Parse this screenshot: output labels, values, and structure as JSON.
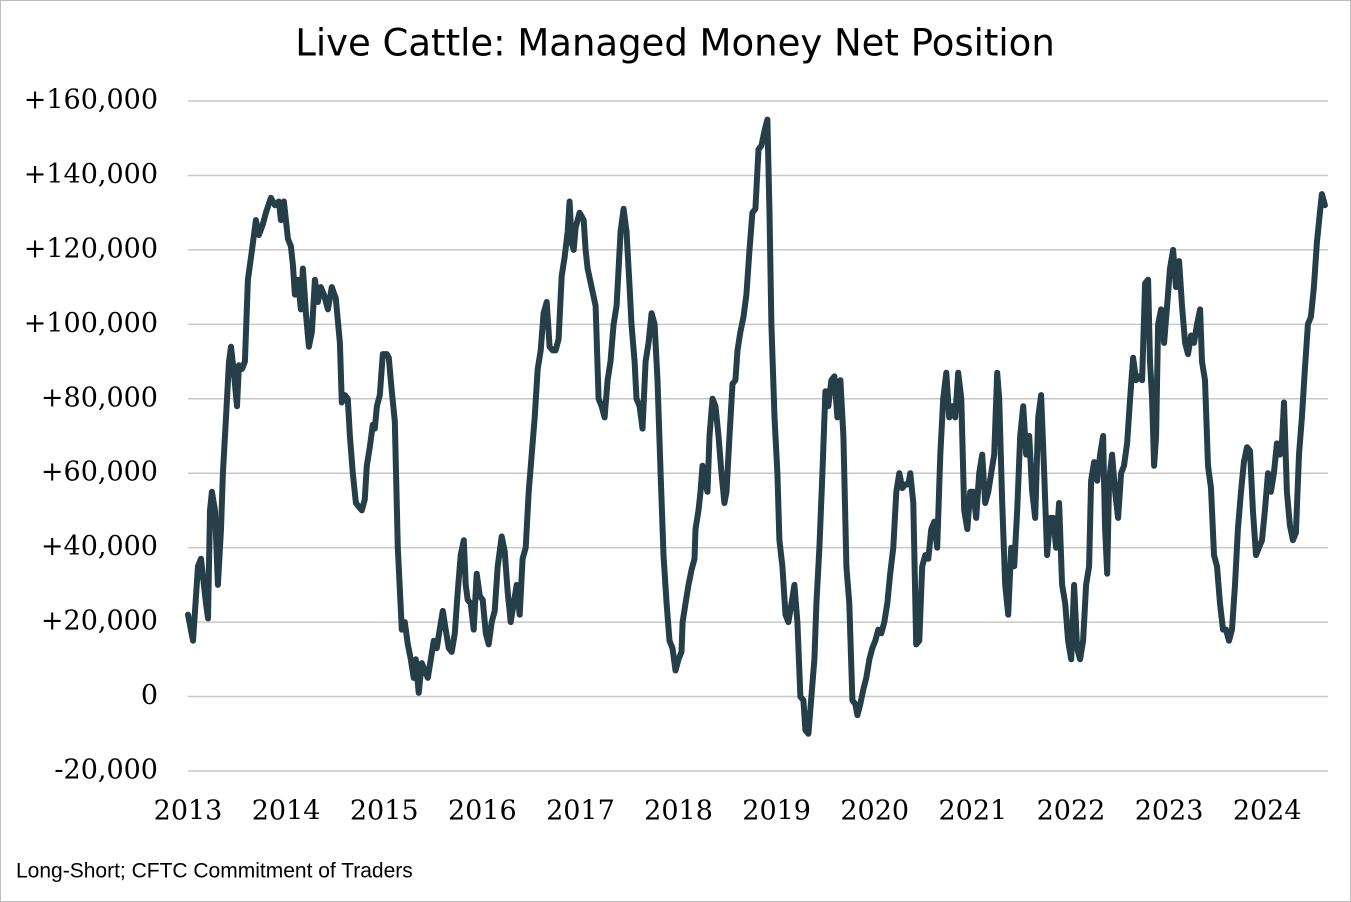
{
  "chart_data": {
    "type": "line",
    "title": "Live Cattle: Managed Money Net Position",
    "note": "Long-Short; CFTC Commitment of Traders",
    "color": "#263e48",
    "grid": true,
    "xlim": [
      2013,
      2024.62
    ],
    "xticks": [
      2013,
      2014,
      2015,
      2016,
      2017,
      2018,
      2019,
      2020,
      2021,
      2022,
      2023,
      2024
    ],
    "ylim": [
      -20000,
      160000
    ],
    "yticks": [
      {
        "value": -20000,
        "label": "-20,000"
      },
      0,
      {
        "value": 20000,
        "label": "+20,000"
      },
      {
        "value": 40000,
        "label": "+40,000"
      },
      {
        "value": 60000,
        "label": "+60,000"
      },
      {
        "value": 80000,
        "label": "+80,000"
      },
      {
        "value": 100000,
        "label": "+100,000"
      },
      {
        "value": 120000,
        "label": "+120,000"
      },
      {
        "value": 140000,
        "label": "+140,000"
      },
      {
        "value": 160000,
        "label": "+160,000"
      }
    ],
    "x": [
      2013.0,
      2013.051,
      2013.102,
      2013.132,
      2013.183,
      2013.204,
      2013.224,
      2013.244,
      2013.275,
      2013.305,
      2013.336,
      2013.356,
      2013.387,
      2013.418,
      2013.438,
      2013.468,
      2013.499,
      2013.519,
      2013.55,
      2013.58,
      2013.611,
      2013.652,
      2013.692,
      2013.723,
      2013.764,
      2013.794,
      2013.845,
      2013.886,
      2013.927,
      2013.947,
      2013.978,
      2014.018,
      2014.049,
      2014.069,
      2014.09,
      2014.12,
      2014.151,
      2014.171,
      2014.202,
      2014.232,
      2014.263,
      2014.293,
      2014.324,
      2014.354,
      2014.385,
      2014.426,
      2014.466,
      2014.507,
      2014.548,
      2014.568,
      2014.599,
      2014.629,
      2014.65,
      2014.68,
      2014.711,
      2014.741,
      2014.772,
      2014.802,
      2014.823,
      2014.853,
      2014.884,
      2014.904,
      2014.925,
      2014.955,
      2014.986,
      2015.026,
      2015.047,
      2015.077,
      2015.108,
      2015.138,
      2015.179,
      2015.21,
      2015.24,
      2015.271,
      2015.301,
      2015.322,
      2015.352,
      2015.383,
      2015.413,
      2015.444,
      2015.475,
      2015.505,
      2015.536,
      2015.566,
      2015.597,
      2015.627,
      2015.658,
      2015.688,
      2015.719,
      2015.749,
      2015.78,
      2015.811,
      2015.831,
      2015.851,
      2015.882,
      2015.912,
      2015.943,
      2015.974,
      2016.004,
      2016.035,
      2016.065,
      2016.096,
      2016.126,
      2016.157,
      2016.198,
      2016.228,
      2016.259,
      2016.289,
      2016.32,
      2016.35,
      2016.381,
      2016.411,
      2016.442,
      2016.473,
      2016.503,
      2016.534,
      2016.564,
      2016.595,
      2016.625,
      2016.656,
      2016.686,
      2016.717,
      2016.747,
      2016.778,
      2016.809,
      2016.839,
      2016.87,
      2016.89,
      2016.91,
      2016.931,
      2016.951,
      2016.992,
      2017.033,
      2017.053,
      2017.073,
      2017.114,
      2017.155,
      2017.185,
      2017.216,
      2017.246,
      2017.277,
      2017.307,
      2017.338,
      2017.369,
      2017.409,
      2017.44,
      2017.47,
      2017.501,
      2017.521,
      2017.552,
      2017.572,
      2017.603,
      2017.633,
      2017.664,
      2017.694,
      2017.725,
      2017.756,
      2017.786,
      2017.817,
      2017.847,
      2017.878,
      2017.908,
      2017.939,
      2017.969,
      2018.0,
      2018.03,
      2018.041,
      2018.071,
      2018.102,
      2018.132,
      2018.163,
      2018.173,
      2018.204,
      2018.224,
      2018.244,
      2018.275,
      2018.295,
      2018.316,
      2018.346,
      2018.377,
      2018.407,
      2018.438,
      2018.468,
      2018.489,
      2018.519,
      2018.55,
      2018.58,
      2018.601,
      2018.631,
      2018.662,
      2018.692,
      2018.723,
      2018.753,
      2018.784,
      2018.815,
      2018.845,
      2018.876,
      2018.906,
      2018.927,
      2018.947,
      2018.978,
      2019.008,
      2019.028,
      2019.059,
      2019.09,
      2019.12,
      2019.151,
      2019.181,
      2019.212,
      2019.242,
      2019.273,
      2019.293,
      2019.324,
      2019.354,
      2019.385,
      2019.405,
      2019.436,
      2019.466,
      2019.497,
      2019.527,
      2019.558,
      2019.589,
      2019.619,
      2019.65,
      2019.68,
      2019.711,
      2019.741,
      2019.772,
      2019.802,
      2019.823,
      2019.853,
      2019.884,
      2019.914,
      2019.945,
      2019.975,
      2020.006,
      2020.036,
      2020.067,
      2020.097,
      2020.128,
      2020.158,
      2020.189,
      2020.22,
      2020.25,
      2020.281,
      2020.311,
      2020.342,
      2020.362,
      2020.393,
      2020.423,
      2020.454,
      2020.484,
      2020.515,
      2020.546,
      2020.576,
      2020.607,
      2020.637,
      2020.668,
      2020.698,
      2020.729,
      2020.759,
      2020.79,
      2020.82,
      2020.851,
      2020.882,
      2020.912,
      2020.943,
      2020.973,
      2021.004,
      2021.034,
      2021.065,
      2021.095,
      2021.126,
      2021.157,
      2021.187,
      2021.218,
      2021.248,
      2021.269,
      2021.299,
      2021.33,
      2021.36,
      2021.391,
      2021.421,
      2021.452,
      2021.483,
      2021.513,
      2021.544,
      2021.574,
      2021.605,
      2021.635,
      2021.666,
      2021.696,
      2021.727,
      2021.757,
      2021.788,
      2021.818,
      2021.849,
      2021.879,
      2021.91,
      2021.941,
      2021.971,
      2022.002,
      2022.032,
      2022.063,
      2022.093,
      2022.124,
      2022.154,
      2022.185,
      2022.205,
      2022.236,
      2022.267,
      2022.297,
      2022.328,
      2022.348,
      2022.369,
      2022.389,
      2022.419,
      2022.45,
      2022.48,
      2022.511,
      2022.541,
      2022.572,
      2022.603,
      2022.633,
      2022.664,
      2022.694,
      2022.725,
      2022.756,
      2022.786,
      2022.806,
      2022.827,
      2022.847,
      2022.868,
      2022.888,
      2022.919,
      2022.949,
      2022.98,
      2023.01,
      2023.041,
      2023.071,
      2023.102,
      2023.132,
      2023.163,
      2023.193,
      2023.224,
      2023.254,
      2023.285,
      2023.316,
      2023.336,
      2023.366,
      2023.397,
      2023.427,
      2023.458,
      2023.489,
      2023.519,
      2023.55,
      2023.58,
      2023.611,
      2023.641,
      2023.672,
      2023.702,
      2023.733,
      2023.763,
      2023.794,
      2023.825,
      2023.855,
      2023.886,
      2023.916,
      2023.947,
      2023.977,
      2024.008,
      2024.038,
      2024.069,
      2024.099,
      2024.13,
      2024.15,
      2024.171,
      2024.201,
      2024.232,
      2024.262,
      2024.293,
      2024.324,
      2024.354,
      2024.385,
      2024.415,
      2024.446,
      2024.476,
      2024.507,
      2024.537,
      2024.558,
      2024.588
    ],
    "values": [
      22000,
      15000,
      35000,
      37000,
      25000,
      21000,
      50000,
      55000,
      50000,
      30000,
      45000,
      60000,
      75000,
      90000,
      94000,
      87000,
      78000,
      89000,
      88000,
      90000,
      112000,
      120000,
      128000,
      124000,
      127000,
      130000,
      134000,
      132000,
      133000,
      128000,
      133000,
      123000,
      121000,
      116000,
      108000,
      112000,
      104000,
      115000,
      103000,
      94000,
      98000,
      112000,
      106000,
      110000,
      108000,
      104000,
      110000,
      107000,
      95000,
      79000,
      81000,
      80000,
      70000,
      60000,
      52000,
      51000,
      50000,
      53000,
      62000,
      67000,
      73000,
      72000,
      78000,
      81000,
      92000,
      92000,
      91000,
      82000,
      74000,
      40000,
      18000,
      20000,
      14000,
      10000,
      5000,
      10000,
      1000,
      9000,
      7000,
      5000,
      10000,
      15000,
      13000,
      18000,
      23000,
      18000,
      13000,
      12000,
      17000,
      28000,
      38000,
      42000,
      30000,
      26000,
      25000,
      18000,
      33000,
      27000,
      26000,
      17000,
      14000,
      20000,
      23000,
      35000,
      43000,
      39000,
      28000,
      20000,
      25000,
      30000,
      22000,
      37000,
      40000,
      55000,
      65000,
      75000,
      88000,
      93000,
      103000,
      106000,
      94000,
      93000,
      93000,
      96000,
      113000,
      118000,
      125000,
      133000,
      122000,
      120000,
      126000,
      130000,
      128000,
      120000,
      115000,
      110000,
      105000,
      80000,
      78000,
      75000,
      85000,
      90000,
      100000,
      105000,
      125000,
      131000,
      125000,
      110000,
      100000,
      90000,
      80000,
      78000,
      72000,
      90000,
      95000,
      103000,
      100000,
      85000,
      60000,
      38000,
      25000,
      15000,
      13000,
      7000,
      10000,
      12000,
      20000,
      25000,
      30000,
      34000,
      37000,
      45000,
      50000,
      55000,
      62000,
      57000,
      55000,
      70000,
      80000,
      78000,
      70000,
      60000,
      52000,
      55000,
      70000,
      84000,
      85000,
      93000,
      98000,
      102000,
      108000,
      120000,
      130000,
      131000,
      147000,
      148000,
      152000,
      155000,
      130000,
      100000,
      75000,
      60000,
      42000,
      35000,
      22000,
      20000,
      25000,
      30000,
      20000,
      0,
      -1000,
      -9000,
      -10000,
      0,
      10000,
      25000,
      40000,
      60000,
      82000,
      78000,
      85000,
      86000,
      75000,
      85000,
      70000,
      35000,
      25000,
      -1000,
      -2000,
      -5000,
      -2000,
      2000,
      5000,
      10000,
      13000,
      15000,
      18000,
      17000,
      20000,
      25000,
      33000,
      40000,
      55000,
      60000,
      56000,
      57000,
      57000,
      60000,
      52000,
      14000,
      15000,
      35000,
      38000,
      37000,
      45000,
      47000,
      40000,
      65000,
      80000,
      87000,
      75000,
      78000,
      75000,
      87000,
      80000,
      50000,
      45000,
      55000,
      55000,
      48000,
      60000,
      65000,
      52000,
      55000,
      60000,
      65000,
      87000,
      80000,
      52000,
      30000,
      22000,
      40000,
      35000,
      50000,
      70000,
      78000,
      65000,
      70000,
      55000,
      48000,
      75000,
      81000,
      60000,
      38000,
      48000,
      48000,
      40000,
      52000,
      30000,
      25000,
      15000,
      10000,
      30000,
      13000,
      10000,
      15000,
      30000,
      35000,
      58000,
      63000,
      58000,
      65000,
      70000,
      45000,
      33000,
      58000,
      65000,
      55000,
      48000,
      60000,
      62000,
      68000,
      80000,
      91000,
      85000,
      86000,
      85000,
      111000,
      112000,
      90000,
      80000,
      62000,
      70000,
      100000,
      104000,
      95000,
      105000,
      115000,
      120000,
      110000,
      117000,
      105000,
      95000,
      92000,
      97000,
      95000,
      100000,
      104000,
      90000,
      85000,
      62000,
      56000,
      38000,
      35000,
      25000,
      18000,
      18000,
      15000,
      18000,
      30000,
      45000,
      55000,
      63000,
      67000,
      66000,
      50000,
      38000,
      40000,
      42000,
      50000,
      60000,
      55000,
      60000,
      68000,
      65000,
      68000,
      79000,
      55000,
      46000,
      42000,
      44000,
      65000,
      75000,
      88000,
      100000,
      102000,
      110000,
      122000,
      130000,
      135000,
      132000
    ]
  }
}
